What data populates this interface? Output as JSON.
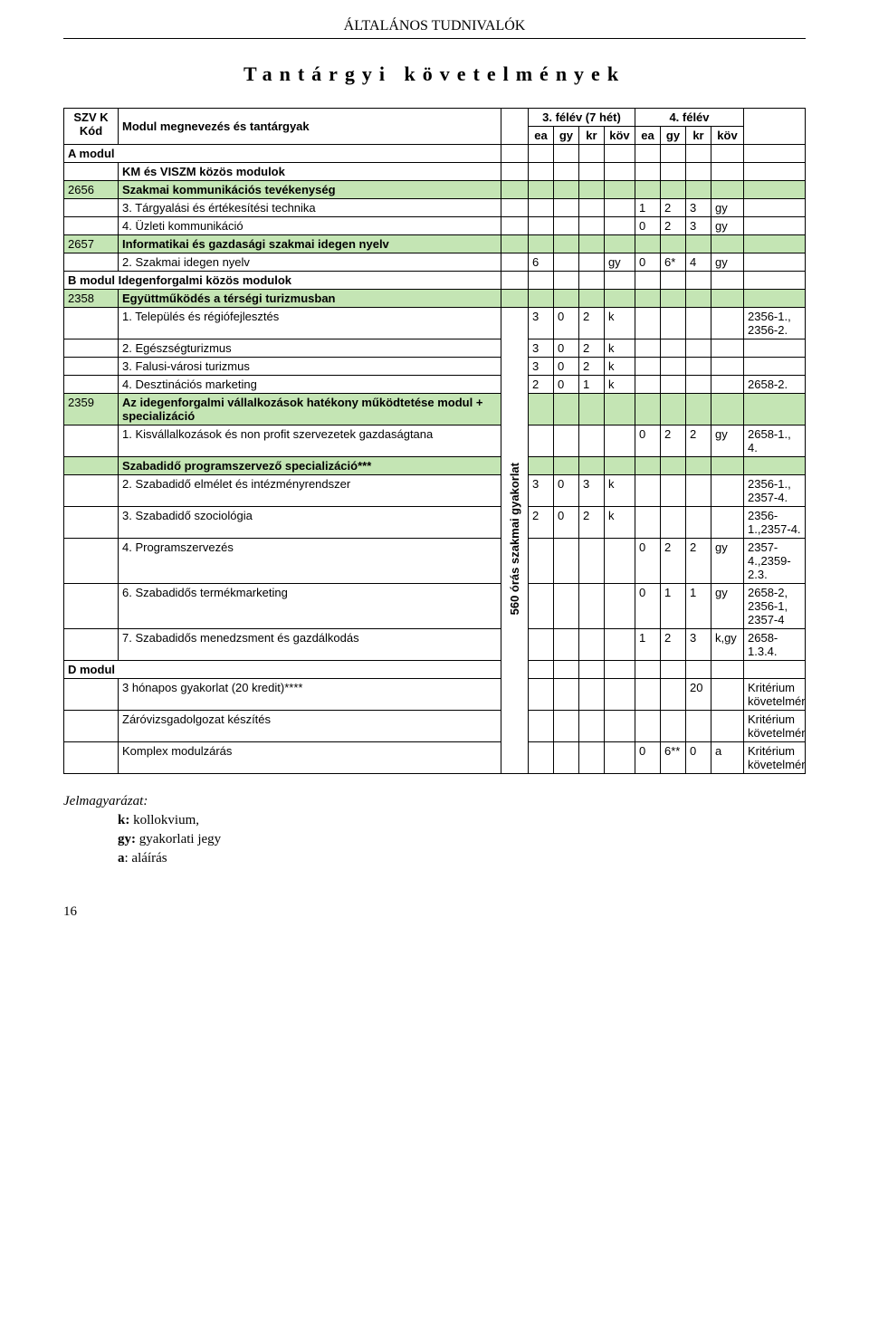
{
  "page": {
    "header": "ÁLTALÁNOS TUDNIVALÓK",
    "title": "Tantárgyi követelmények",
    "pageNumber": "16"
  },
  "colgroup": {
    "widths": [
      "60px",
      "auto",
      "30px",
      "28px",
      "28px",
      "28px",
      "34px",
      "28px",
      "28px",
      "28px",
      "36px",
      "68px"
    ]
  },
  "headerRow1": {
    "c0": "SZV K Kód",
    "c1": "Modul megnevezés és tantárgyak",
    "c3_span": "3. félév (7 hét)",
    "c7_span": "4. félév"
  },
  "headerRow2": {
    "c3": "ea",
    "c4": "gy",
    "c5": "kr",
    "c6": "köv",
    "c7": "ea",
    "c8": "gy",
    "c9": "kr",
    "c10": "köv"
  },
  "rows": [
    {
      "class": "bold",
      "cells": {
        "0": {
          "text": "A modul",
          "colspan": 2
        },
        "11": {}
      }
    },
    {
      "cells": {
        "1": {
          "text": "KM és VISZM közös modulok",
          "class": "bold"
        }
      }
    },
    {
      "class": "green",
      "cells": {
        "0": {
          "text": "2656"
        },
        "1": {
          "text": "Szakmai kommunikációs tevékenység",
          "class": "bold"
        }
      }
    },
    {
      "cells": {
        "1": {
          "text": "3. Tárgyalási és értékesítési technika"
        },
        "7": {
          "text": "1"
        },
        "8": {
          "text": "2"
        },
        "9": {
          "text": "3"
        },
        "10": {
          "text": "gy"
        }
      }
    },
    {
      "cells": {
        "1": {
          "text": "4. Üzleti kommunikáció"
        },
        "7": {
          "text": "0"
        },
        "8": {
          "text": "2"
        },
        "9": {
          "text": "3"
        },
        "10": {
          "text": "gy"
        }
      }
    },
    {
      "class": "green",
      "cells": {
        "0": {
          "text": "2657"
        },
        "1": {
          "text": "Informatikai és gazdasági szakmai idegen nyelv",
          "class": "bold"
        }
      }
    },
    {
      "cells": {
        "1": {
          "text": "2. Szakmai idegen nyelv"
        },
        "3": {
          "text": "6"
        },
        "6": {
          "text": "gy"
        },
        "7": {
          "text": "0"
        },
        "8": {
          "text": "6*"
        },
        "9": {
          "text": "4"
        },
        "10": {
          "text": "gy"
        }
      }
    },
    {
      "class": "bold",
      "cells": {
        "0": {
          "text": "B modul Idegenforgalmi közös modulok",
          "colspan": 2
        }
      }
    },
    {
      "class": "green",
      "cells": {
        "0": {
          "text": "2358"
        },
        "1": {
          "text": "Együttműködés a térségi turizmusban",
          "class": "bold"
        }
      }
    },
    {
      "startVertical": true,
      "cells": {
        "1": {
          "text": "1. Település és régiófejlesztés"
        },
        "3": {
          "text": "3"
        },
        "4": {
          "text": "0"
        },
        "5": {
          "text": "2"
        },
        "6": {
          "text": "k"
        },
        "11": {
          "text": "2356-1., 2356-2."
        }
      }
    },
    {
      "cells": {
        "1": {
          "text": "2. Egészségturizmus"
        },
        "3": {
          "text": "3"
        },
        "4": {
          "text": "0"
        },
        "5": {
          "text": "2"
        },
        "6": {
          "text": "k"
        }
      }
    },
    {
      "cells": {
        "1": {
          "text": "3. Falusi-városi turizmus"
        },
        "3": {
          "text": "3"
        },
        "4": {
          "text": "0"
        },
        "5": {
          "text": "2"
        },
        "6": {
          "text": "k"
        }
      }
    },
    {
      "cells": {
        "1": {
          "text": "4. Desztinációs marketing"
        },
        "3": {
          "text": "2"
        },
        "4": {
          "text": "0"
        },
        "5": {
          "text": "1"
        },
        "6": {
          "text": "k"
        },
        "11": {
          "text": "2658-2."
        }
      }
    },
    {
      "class": "green",
      "cells": {
        "0": {
          "text": "2359"
        },
        "1": {
          "text": "Az idegenforgalmi vállalkozások hatékony működtetése modul + specializáció",
          "class": "bold"
        }
      }
    },
    {
      "cells": {
        "1": {
          "text": "1. Kisvállalkozások és non profit szervezetek gazdaságtana"
        },
        "7": {
          "text": "0"
        },
        "8": {
          "text": "2"
        },
        "9": {
          "text": "2"
        },
        "10": {
          "text": "gy"
        },
        "11": {
          "text": "2658-1., 4."
        }
      }
    },
    {
      "class": "green",
      "cells": {
        "1": {
          "text": "Szabadidő programszervező specializáció***",
          "class": "bold"
        }
      }
    },
    {
      "cells": {
        "1": {
          "text": "2. Szabadidő elmélet és intézményrendszer"
        },
        "3": {
          "text": "3"
        },
        "4": {
          "text": "0"
        },
        "5": {
          "text": "3"
        },
        "6": {
          "text": "k"
        },
        "11": {
          "text": "2356-1., 2357-4."
        }
      }
    },
    {
      "cells": {
        "1": {
          "text": "3. Szabadidő szociológia"
        },
        "3": {
          "text": "2"
        },
        "4": {
          "text": "0"
        },
        "5": {
          "text": "2"
        },
        "6": {
          "text": "k"
        },
        "11": {
          "text": "2356-1.,2357-4."
        }
      }
    },
    {
      "cells": {
        "1": {
          "text": "4. Programszervezés"
        },
        "7": {
          "text": "0"
        },
        "8": {
          "text": "2"
        },
        "9": {
          "text": "2"
        },
        "10": {
          "text": "gy"
        },
        "11": {
          "text": "2357-4.,2359-2.3."
        }
      }
    },
    {
      "cells": {
        "1": {
          "text": "6. Szabadidős termékmarketing"
        },
        "7": {
          "text": "0"
        },
        "8": {
          "text": "1"
        },
        "9": {
          "text": "1"
        },
        "10": {
          "text": "gy"
        },
        "11": {
          "text": "2658-2, 2356-1, 2357-4"
        }
      }
    },
    {
      "cells": {
        "1": {
          "text": "7. Szabadidős menedzsment és gazdálkodás"
        },
        "7": {
          "text": "1"
        },
        "8": {
          "text": "2"
        },
        "9": {
          "text": "3"
        },
        "10": {
          "text": "k,gy"
        },
        "11": {
          "text": "2658-1.3.4."
        }
      }
    },
    {
      "class": "bold",
      "cells": {
        "0": {
          "text": "D modul",
          "colspan": 2
        }
      }
    },
    {
      "cells": {
        "1": {
          "text": "3 hónapos gyakorlat (20 kredit)****"
        },
        "9": {
          "text": "20"
        },
        "11": {
          "text": "Kritérium követelmény"
        }
      }
    },
    {
      "cells": {
        "1": {
          "text": "Záróvizsgadolgozat készítés"
        },
        "11": {
          "text": "Kritérium követelmény"
        }
      }
    },
    {
      "cells": {
        "1": {
          "text": "Komplex modulzárás"
        },
        "7": {
          "text": "0"
        },
        "8": {
          "text": "6**"
        },
        "9": {
          "text": "0"
        },
        "10": {
          "text": "a"
        },
        "11": {
          "text": "Kritérium követelmény"
        }
      }
    }
  ],
  "verticalLabel": "560 órás szakmai gyakorlat",
  "verticalRowspan": 16,
  "legend": {
    "title": "Jelmagyarázat:",
    "items": [
      {
        "k": "k:",
        "v": " kollokvium,"
      },
      {
        "k": "gy:",
        "v": " gyakorlati jegy"
      },
      {
        "k": "a",
        "v": ": aláírás"
      }
    ]
  }
}
